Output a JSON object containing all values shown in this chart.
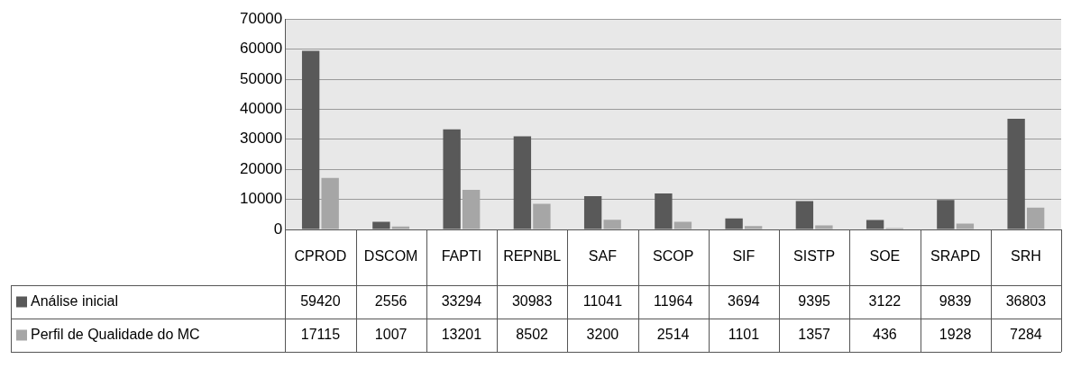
{
  "chart_data": {
    "type": "bar",
    "categories": [
      "CPROD",
      "DSCOM",
      "FAPTI",
      "REPNBL",
      "SAF",
      "SCOP",
      "SIF",
      "SISTP",
      "SOE",
      "SRAPD",
      "SRH"
    ],
    "series": [
      {
        "name": "Análise inicial",
        "color": "#595959",
        "values": [
          59420,
          2556,
          33294,
          30983,
          11041,
          11964,
          3694,
          9395,
          3122,
          9839,
          36803
        ]
      },
      {
        "name": "Perfil de Qualidade do MC",
        "color": "#a6a6a6",
        "values": [
          17115,
          1007,
          13201,
          8502,
          3200,
          2514,
          1101,
          1357,
          436,
          1928,
          7284
        ]
      }
    ],
    "ylim": [
      0,
      70000
    ],
    "yticks": [
      0,
      10000,
      20000,
      30000,
      40000,
      50000,
      60000,
      70000
    ],
    "grid": true,
    "legend": "bottom",
    "data_labels": true
  }
}
